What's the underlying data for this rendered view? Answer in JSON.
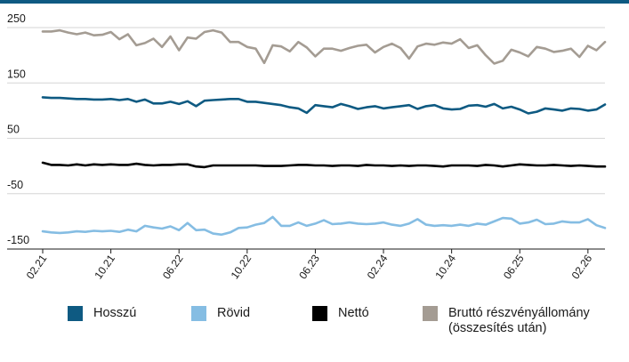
{
  "chart_data": {
    "type": "line",
    "title": "",
    "xlabel": "",
    "ylabel": "",
    "ylim": [
      -175,
      265
    ],
    "yticks": [
      250,
      150,
      50,
      -50,
      -150
    ],
    "ytick_labels": [
      "250",
      "150",
      "50",
      "-50",
      "-150"
    ],
    "xtick_labels": [
      "02.21",
      "10.21",
      "06.22",
      "10.22",
      "06.23",
      "02.24",
      "10.24",
      "06.25",
      "02.26"
    ],
    "xtick_index": [
      0,
      8,
      16,
      24,
      32,
      40,
      48,
      56,
      64
    ],
    "grid": true,
    "legend_position": "bottom",
    "n_points": 67,
    "series": [
      {
        "name": "Hosszú",
        "color": "#0e5a82",
        "values": [
          124,
          123,
          123,
          122,
          121,
          121,
          120,
          120,
          121,
          119,
          121,
          116,
          120,
          113,
          113,
          116,
          112,
          117,
          108,
          118,
          119,
          120,
          121,
          121,
          116,
          116,
          114,
          112,
          110,
          106,
          104,
          96,
          110,
          108,
          106,
          112,
          108,
          103,
          106,
          108,
          104,
          106,
          108,
          110,
          103,
          108,
          110,
          104,
          102,
          103,
          109,
          110,
          107,
          112,
          104,
          107,
          102,
          95,
          98,
          104,
          102,
          100,
          104,
          103,
          100,
          102,
          111
        ]
      },
      {
        "name": "Rövid",
        "color": "#85bde3",
        "values": [
          -118,
          -120,
          -121,
          -120,
          -118,
          -119,
          -117,
          -118,
          -117,
          -119,
          -115,
          -118,
          -108,
          -111,
          -113,
          -109,
          -116,
          -103,
          -116,
          -115,
          -122,
          -124,
          -120,
          -112,
          -111,
          -106,
          -103,
          -92,
          -108,
          -108,
          -102,
          -108,
          -104,
          -98,
          -105,
          -104,
          -102,
          -104,
          -105,
          -104,
          -102,
          -106,
          -108,
          -104,
          -96,
          -106,
          -108,
          -107,
          -108,
          -106,
          -108,
          -104,
          -106,
          -100,
          -94,
          -95,
          -104,
          -102,
          -97,
          -105,
          -104,
          -100,
          -102,
          -102,
          -96,
          -107,
          -112
        ]
      },
      {
        "name": "Nettó",
        "color": "#000000",
        "values": [
          6,
          2,
          2,
          1,
          3,
          1,
          3,
          2,
          3,
          2,
          2,
          4,
          2,
          1,
          2,
          2,
          3,
          3,
          -1,
          -2,
          1,
          1,
          1,
          1,
          1,
          1,
          0,
          0,
          0,
          1,
          2,
          2,
          1,
          1,
          0,
          1,
          1,
          0,
          2,
          1,
          1,
          0,
          1,
          0,
          1,
          1,
          0,
          -1,
          1,
          1,
          1,
          0,
          2,
          1,
          -1,
          1,
          3,
          2,
          1,
          1,
          2,
          1,
          0,
          1,
          0,
          -1,
          -1
        ]
      },
      {
        "name": "Bruttó részvényállomány (összesítés után)",
        "color": "#a49c93",
        "values": [
          243,
          243,
          245,
          241,
          238,
          241,
          236,
          237,
          242,
          229,
          238,
          218,
          222,
          230,
          215,
          234,
          209,
          232,
          230,
          242,
          245,
          241,
          224,
          224,
          215,
          212,
          186,
          218,
          216,
          207,
          224,
          214,
          198,
          212,
          212,
          208,
          213,
          217,
          219,
          205,
          215,
          221,
          213,
          194,
          216,
          221,
          219,
          223,
          221,
          229,
          213,
          218,
          200,
          185,
          190,
          210,
          205,
          198,
          215,
          212,
          206,
          208,
          212,
          197,
          217,
          209,
          224
        ]
      }
    ]
  },
  "colors": {
    "accent": "#0e5a82",
    "grid": "#d6d6d6",
    "axis": "#1a1a1a"
  }
}
